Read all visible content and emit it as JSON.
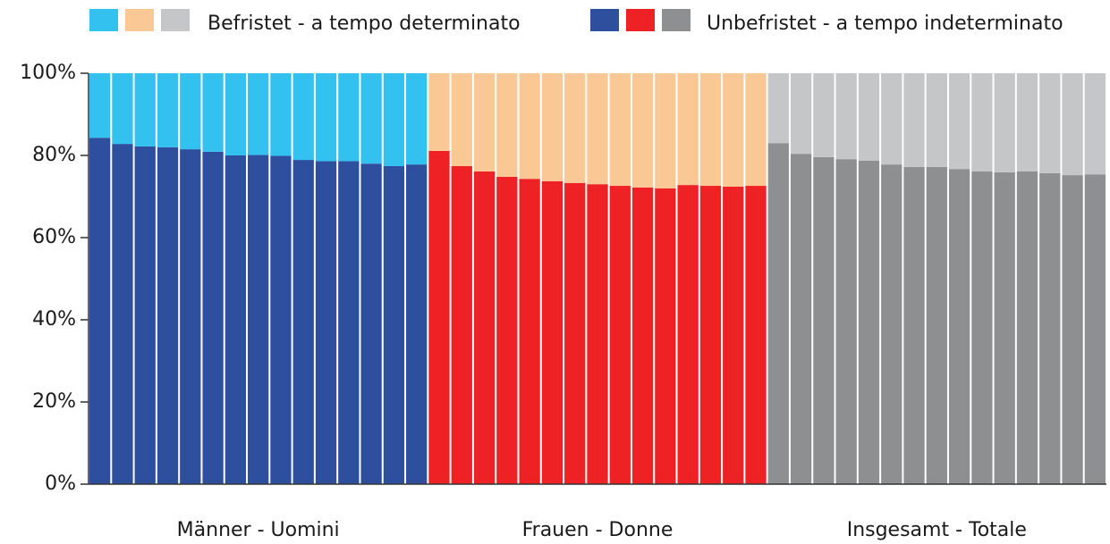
{
  "chart_data": {
    "type": "stacked_bar",
    "groups": [
      "Männer - Uomini",
      "Frauen - Donne",
      "Insgesamt - Totale"
    ],
    "series": [
      {
        "name": "Unbefristet - a tempo indeterminato",
        "colors": [
          "#2e4e9e",
          "#ee2124",
          "#8e8f91"
        ],
        "values": [
          [
            84.3,
            82.8,
            82.2,
            82.0,
            81.5,
            80.9,
            80.0,
            80.1,
            79.9,
            78.9,
            78.6,
            78.6,
            78.0,
            77.4,
            77.8
          ],
          [
            81.1,
            77.4,
            76.1,
            74.8,
            74.3,
            73.7,
            73.3,
            73.0,
            72.6,
            72.2,
            72.0,
            72.8,
            72.6,
            72.4,
            72.6
          ],
          [
            83.0,
            80.4,
            79.6,
            79.1,
            78.7,
            77.8,
            77.2,
            77.2,
            76.7,
            76.1,
            75.9,
            76.1,
            75.7,
            75.2,
            75.4
          ]
        ]
      },
      {
        "name": "Befristet - a tempo determinato",
        "colors": [
          "#33c1f0",
          "#f9c895",
          "#c5c6c8"
        ],
        "values": [
          [
            15.7,
            17.2,
            17.8,
            18.0,
            18.5,
            19.1,
            20.0,
            19.9,
            20.1,
            21.1,
            21.4,
            21.4,
            22.0,
            22.6,
            22.2
          ],
          [
            18.9,
            22.6,
            23.9,
            25.2,
            25.7,
            26.3,
            26.7,
            27.0,
            27.4,
            27.8,
            28.0,
            27.2,
            27.4,
            27.6,
            27.4
          ],
          [
            17.0,
            19.6,
            20.4,
            20.9,
            21.3,
            22.2,
            22.8,
            22.8,
            23.3,
            23.9,
            24.1,
            23.9,
            24.3,
            24.8,
            24.6
          ]
        ]
      }
    ],
    "ylim": [
      0,
      100
    ],
    "yticks": [
      {
        "value": 0,
        "label": "0%"
      },
      {
        "value": 20,
        "label": "20%"
      },
      {
        "value": 40,
        "label": "40%"
      },
      {
        "value": 60,
        "label": "60%"
      },
      {
        "value": 80,
        "label": "80%"
      },
      {
        "value": 100,
        "label": "100%"
      }
    ]
  }
}
